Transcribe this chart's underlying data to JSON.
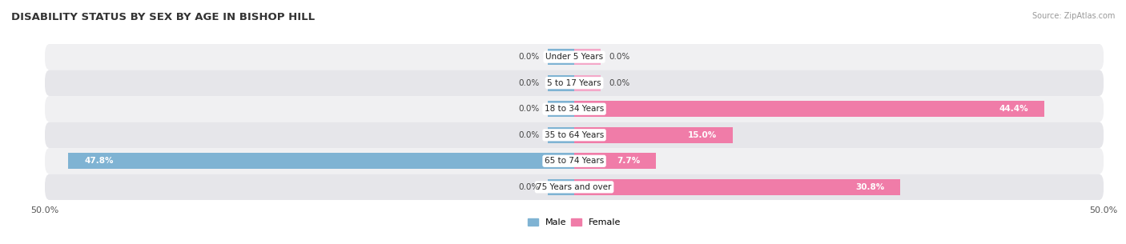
{
  "title": "DISABILITY STATUS BY SEX BY AGE IN BISHOP HILL",
  "source": "Source: ZipAtlas.com",
  "categories": [
    "Under 5 Years",
    "5 to 17 Years",
    "18 to 34 Years",
    "35 to 64 Years",
    "65 to 74 Years",
    "75 Years and over"
  ],
  "male_values": [
    0.0,
    0.0,
    0.0,
    0.0,
    47.8,
    0.0
  ],
  "female_values": [
    0.0,
    0.0,
    44.4,
    15.0,
    7.7,
    30.8
  ],
  "male_color": "#7fb3d3",
  "female_color": "#f07ca8",
  "female_color_light": "#f4a8c8",
  "row_bg_color_odd": "#f0f0f2",
  "row_bg_color_even": "#e6e6ea",
  "max_val": 50.0,
  "figsize": [
    14.06,
    3.05
  ],
  "dpi": 100,
  "title_fontsize": 9.5,
  "label_fontsize": 7.5,
  "tick_fontsize": 8,
  "bar_height": 0.62,
  "legend_fontsize": 8,
  "stub_size": 2.5
}
